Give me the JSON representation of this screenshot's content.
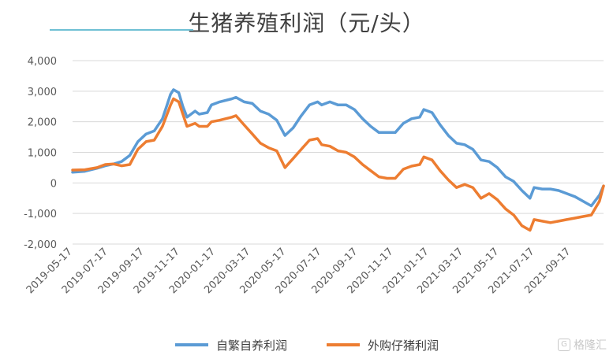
{
  "chart_data": {
    "type": "line",
    "title": "生猪养殖利润（元/头）",
    "ylim": [
      -2000,
      4000
    ],
    "yticks": [
      4000,
      3000,
      2000,
      1000,
      0,
      -1000,
      -2000
    ],
    "ytick_labels": [
      "4,000",
      "3,000",
      "2,000",
      "1,000",
      "0",
      "-1,000",
      "-2,000"
    ],
    "xlim": [
      "2019-05-17",
      "2021-11-12"
    ],
    "xtick_labels": [
      "2019-05-17",
      "2019-07-17",
      "2019-09-17",
      "2019-11-17",
      "2020-01-17",
      "2020-03-17",
      "2020-05-17",
      "2020-07-17",
      "2020-09-17",
      "2020-11-17",
      "2021-01-17",
      "2021-03-17",
      "2021-05-17",
      "2021-07-17",
      "2021-09-17"
    ],
    "grid": true,
    "legend_position": "bottom",
    "series": [
      {
        "name": "自繁自养利润",
        "color": "#5B9BD5",
        "points": [
          [
            "2019-05-17",
            350
          ],
          [
            "2019-06-07",
            380
          ],
          [
            "2019-06-28",
            480
          ],
          [
            "2019-07-12",
            560
          ],
          [
            "2019-07-26",
            620
          ],
          [
            "2019-08-09",
            700
          ],
          [
            "2019-08-23",
            900
          ],
          [
            "2019-09-06",
            1350
          ],
          [
            "2019-09-20",
            1600
          ],
          [
            "2019-10-04",
            1700
          ],
          [
            "2019-10-18",
            2100
          ],
          [
            "2019-10-25",
            2500
          ],
          [
            "2019-11-01",
            2900
          ],
          [
            "2019-11-06",
            3050
          ],
          [
            "2019-11-15",
            2950
          ],
          [
            "2019-11-22",
            2500
          ],
          [
            "2019-11-29",
            2150
          ],
          [
            "2019-12-13",
            2350
          ],
          [
            "2019-12-20",
            2250
          ],
          [
            "2020-01-03",
            2300
          ],
          [
            "2020-01-10",
            2550
          ],
          [
            "2020-01-24",
            2650
          ],
          [
            "2020-02-14",
            2750
          ],
          [
            "2020-02-21",
            2800
          ],
          [
            "2020-03-06",
            2650
          ],
          [
            "2020-03-20",
            2600
          ],
          [
            "2020-04-03",
            2350
          ],
          [
            "2020-04-17",
            2250
          ],
          [
            "2020-05-01",
            2050
          ],
          [
            "2020-05-15",
            1550
          ],
          [
            "2020-05-29",
            1800
          ],
          [
            "2020-06-12",
            2200
          ],
          [
            "2020-06-26",
            2550
          ],
          [
            "2020-07-10",
            2650
          ],
          [
            "2020-07-17",
            2550
          ],
          [
            "2020-07-31",
            2650
          ],
          [
            "2020-08-14",
            2550
          ],
          [
            "2020-08-28",
            2550
          ],
          [
            "2020-09-11",
            2400
          ],
          [
            "2020-09-25",
            2100
          ],
          [
            "2020-10-09",
            1850
          ],
          [
            "2020-10-23",
            1650
          ],
          [
            "2020-11-06",
            1650
          ],
          [
            "2020-11-20",
            1650
          ],
          [
            "2020-12-04",
            1950
          ],
          [
            "2020-12-18",
            2100
          ],
          [
            "2021-01-01",
            2150
          ],
          [
            "2021-01-08",
            2400
          ],
          [
            "2021-01-22",
            2300
          ],
          [
            "2021-02-05",
            1900
          ],
          [
            "2021-02-19",
            1550
          ],
          [
            "2021-03-05",
            1300
          ],
          [
            "2021-03-19",
            1250
          ],
          [
            "2021-04-02",
            1100
          ],
          [
            "2021-04-16",
            750
          ],
          [
            "2021-04-30",
            700
          ],
          [
            "2021-05-14",
            500
          ],
          [
            "2021-05-28",
            200
          ],
          [
            "2021-06-11",
            50
          ],
          [
            "2021-06-25",
            -250
          ],
          [
            "2021-07-09",
            -500
          ],
          [
            "2021-07-16",
            -150
          ],
          [
            "2021-07-30",
            -200
          ],
          [
            "2021-08-13",
            -200
          ],
          [
            "2021-08-27",
            -250
          ],
          [
            "2021-09-10",
            -350
          ],
          [
            "2021-09-24",
            -450
          ],
          [
            "2021-10-08",
            -600
          ],
          [
            "2021-10-22",
            -750
          ],
          [
            "2021-11-05",
            -400
          ],
          [
            "2021-11-12",
            -100
          ]
        ]
      },
      {
        "name": "外购仔猪利润",
        "color": "#ED7D31",
        "points": [
          [
            "2019-05-17",
            420
          ],
          [
            "2019-06-07",
            430
          ],
          [
            "2019-06-28",
            500
          ],
          [
            "2019-07-12",
            600
          ],
          [
            "2019-07-26",
            620
          ],
          [
            "2019-08-09",
            560
          ],
          [
            "2019-08-23",
            600
          ],
          [
            "2019-09-06",
            1100
          ],
          [
            "2019-09-20",
            1350
          ],
          [
            "2019-10-04",
            1400
          ],
          [
            "2019-10-18",
            1850
          ],
          [
            "2019-10-25",
            2200
          ],
          [
            "2019-11-01",
            2550
          ],
          [
            "2019-11-06",
            2750
          ],
          [
            "2019-11-15",
            2650
          ],
          [
            "2019-11-22",
            2250
          ],
          [
            "2019-11-29",
            1850
          ],
          [
            "2019-12-13",
            1950
          ],
          [
            "2019-12-20",
            1850
          ],
          [
            "2020-01-03",
            1850
          ],
          [
            "2020-01-10",
            2000
          ],
          [
            "2020-01-24",
            2050
          ],
          [
            "2020-02-14",
            2150
          ],
          [
            "2020-02-21",
            2200
          ],
          [
            "2020-03-06",
            1900
          ],
          [
            "2020-03-20",
            1600
          ],
          [
            "2020-04-03",
            1300
          ],
          [
            "2020-04-17",
            1150
          ],
          [
            "2020-05-01",
            1050
          ],
          [
            "2020-05-15",
            500
          ],
          [
            "2020-05-29",
            800
          ],
          [
            "2020-06-12",
            1100
          ],
          [
            "2020-06-26",
            1400
          ],
          [
            "2020-07-10",
            1450
          ],
          [
            "2020-07-17",
            1250
          ],
          [
            "2020-07-31",
            1200
          ],
          [
            "2020-08-14",
            1050
          ],
          [
            "2020-08-28",
            1000
          ],
          [
            "2020-09-11",
            850
          ],
          [
            "2020-09-25",
            600
          ],
          [
            "2020-10-09",
            400
          ],
          [
            "2020-10-23",
            200
          ],
          [
            "2020-11-06",
            150
          ],
          [
            "2020-11-20",
            150
          ],
          [
            "2020-12-04",
            450
          ],
          [
            "2020-12-18",
            550
          ],
          [
            "2021-01-01",
            600
          ],
          [
            "2021-01-08",
            850
          ],
          [
            "2021-01-22",
            750
          ],
          [
            "2021-02-05",
            400
          ],
          [
            "2021-02-19",
            100
          ],
          [
            "2021-03-05",
            -150
          ],
          [
            "2021-03-19",
            -50
          ],
          [
            "2021-04-02",
            -150
          ],
          [
            "2021-04-16",
            -500
          ],
          [
            "2021-04-30",
            -350
          ],
          [
            "2021-05-14",
            -550
          ],
          [
            "2021-05-28",
            -850
          ],
          [
            "2021-06-11",
            -1050
          ],
          [
            "2021-06-25",
            -1400
          ],
          [
            "2021-07-09",
            -1550
          ],
          [
            "2021-07-16",
            -1200
          ],
          [
            "2021-07-30",
            -1250
          ],
          [
            "2021-08-13",
            -1300
          ],
          [
            "2021-08-27",
            -1250
          ],
          [
            "2021-09-10",
            -1200
          ],
          [
            "2021-09-24",
            -1150
          ],
          [
            "2021-10-08",
            -1100
          ],
          [
            "2021-10-22",
            -1050
          ],
          [
            "2021-11-05",
            -600
          ],
          [
            "2021-11-12",
            -100
          ]
        ]
      }
    ]
  },
  "watermark": {
    "glyph": "G",
    "text": "格隆汇"
  }
}
